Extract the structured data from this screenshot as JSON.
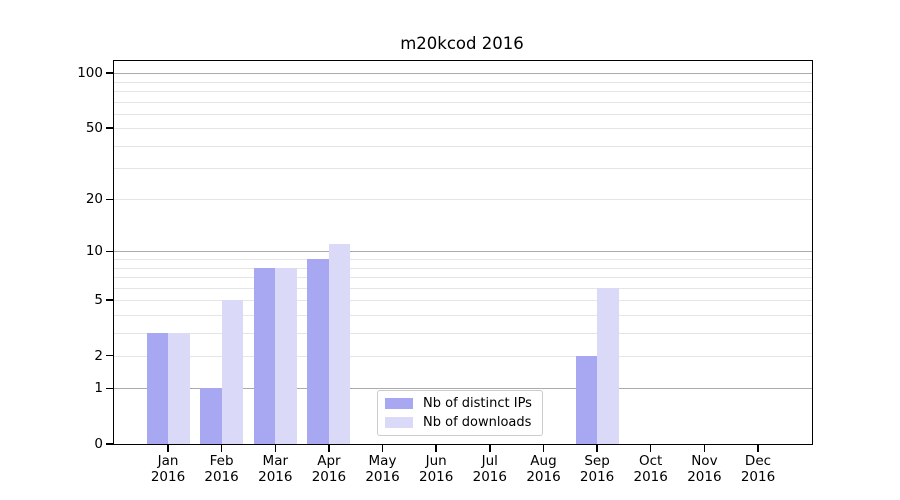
{
  "chart_data": {
    "type": "bar",
    "title": "m20kcod 2016",
    "x_tick_labels": [
      "Jan\n2016",
      "Feb\n2016",
      "Mar\n2016",
      "Apr\n2016",
      "May\n2016",
      "Jun\n2016",
      "Jul\n2016",
      "Aug\n2016",
      "Sep\n2016",
      "Oct\n2016",
      "Nov\n2016",
      "Dec\n2016"
    ],
    "series": [
      {
        "name": "Nb of distinct IPs",
        "color": "#a8a8f2",
        "values": [
          3,
          1,
          8,
          9,
          0,
          0,
          0,
          0,
          2,
          0,
          0,
          0
        ]
      },
      {
        "name": "Nb of downloads",
        "color": "#dadaf8",
        "values": [
          3,
          5,
          8,
          11,
          0,
          0,
          0,
          0,
          6,
          0,
          0,
          0
        ]
      }
    ],
    "y_axis": {
      "scale": "log10(1+y)",
      "tick_values": [
        0,
        1,
        2,
        5,
        10,
        20,
        50,
        100
      ],
      "major_grid_values": [
        1,
        10,
        100
      ],
      "minor_grid_values": [
        2,
        3,
        4,
        5,
        6,
        7,
        8,
        9,
        20,
        30,
        40,
        50,
        60,
        70,
        80,
        90
      ],
      "top_value": 117
    },
    "grid": "horizontal",
    "legend_position": "lower-center",
    "colors": {
      "axis": "#000000",
      "grid_major": "#ababab",
      "grid_minor": "#e5e5e5",
      "background": "#ffffff",
      "legend_border": "#cccccc"
    }
  }
}
